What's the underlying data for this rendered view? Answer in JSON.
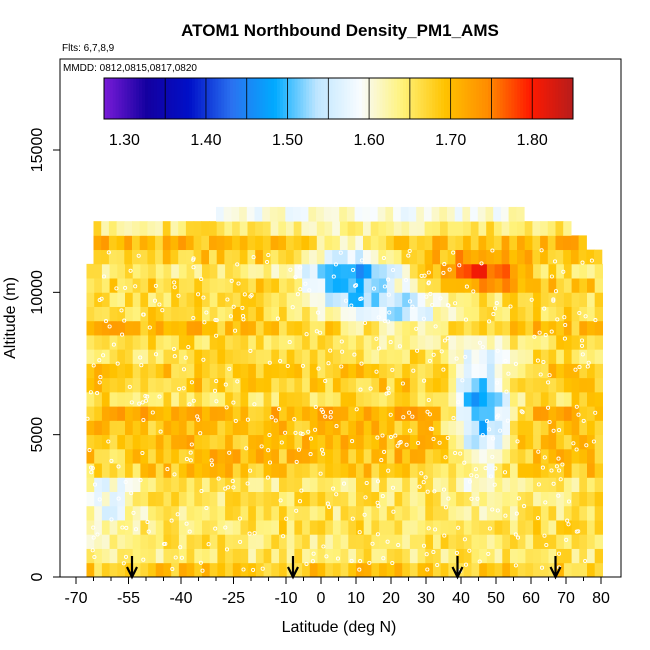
{
  "chart_data": {
    "type": "heatmap",
    "title": "ATOM1 Northbound Density_PM1_AMS",
    "flights_label": "Flts: 6,7,8,9",
    "dates_label": "MMDD: 0812,0815,0817,0820",
    "xlabel": "Latitude (deg N)",
    "ylabel": "Altitude (m)",
    "xlim": [
      -70,
      80
    ],
    "ylim": [
      0,
      17500
    ],
    "x_ticks": [
      -70,
      -55,
      -40,
      -25,
      -10,
      0,
      10,
      20,
      30,
      40,
      50,
      60,
      70,
      80
    ],
    "x_tick_labels": [
      "-70",
      "-55",
      "-40",
      "-25",
      "-10",
      "0",
      "10",
      "20",
      "30",
      "40",
      "50",
      "60",
      "70",
      "80"
    ],
    "x_minor_ticks": [
      -65,
      -60,
      -50,
      -45,
      -35,
      -30,
      -20,
      -15,
      -5,
      5,
      15,
      25,
      35,
      45,
      55,
      65,
      75
    ],
    "y_ticks": [
      0,
      5000,
      10000,
      15000
    ],
    "y_tick_labels": [
      "0",
      "5000",
      "10000",
      "15000"
    ],
    "colorbar": {
      "min": 1.275,
      "max": 1.85,
      "tick_values": [
        1.3,
        1.4,
        1.5,
        1.6,
        1.7,
        1.8
      ],
      "tick_labels": [
        "1.30",
        "1.40",
        "1.50",
        "1.60",
        "1.70",
        "1.80"
      ],
      "boundaries": [
        1.35,
        1.4,
        1.45,
        1.5,
        1.55,
        1.6,
        1.65,
        1.7,
        1.75,
        1.8
      ],
      "color_stops": [
        "#7a1cd8",
        "#1400a0",
        "#0010c8",
        "#2a72f0",
        "#00aaff",
        "#bfe6ff",
        "#f8fcff",
        "#fff27a",
        "#ffc300",
        "#ff8c00",
        "#ff1a00",
        "#b71c1c"
      ]
    },
    "data_extent": {
      "lat_min": -67,
      "lat_max": 79,
      "alt_max": 12900
    },
    "arrows_latitude": [
      -54,
      -8,
      39,
      67
    ],
    "altitude_levels_m": [
      250,
      750,
      1250,
      1750,
      2250,
      2750,
      3250,
      3750,
      4250,
      4750,
      5250,
      5750,
      6250,
      6750,
      7250,
      7750,
      8250,
      8750,
      9250,
      9750,
      10250,
      10750,
      11250,
      11750,
      12250,
      12750
    ],
    "field_note": "density values 1.28-1.82; mostly 1.62-1.75 (yellow-orange) with low values 1.38-1.52 (blue) near 40-55N at 3-8 km and 0-20N at 8-12 km; high values 1.75-1.82 (red) near 30-60N at 10-11 km"
  },
  "axes_colors": {
    "frame": "#000000",
    "background": "#ffffff",
    "arrow": "#000000",
    "trace": "#ffffff"
  }
}
